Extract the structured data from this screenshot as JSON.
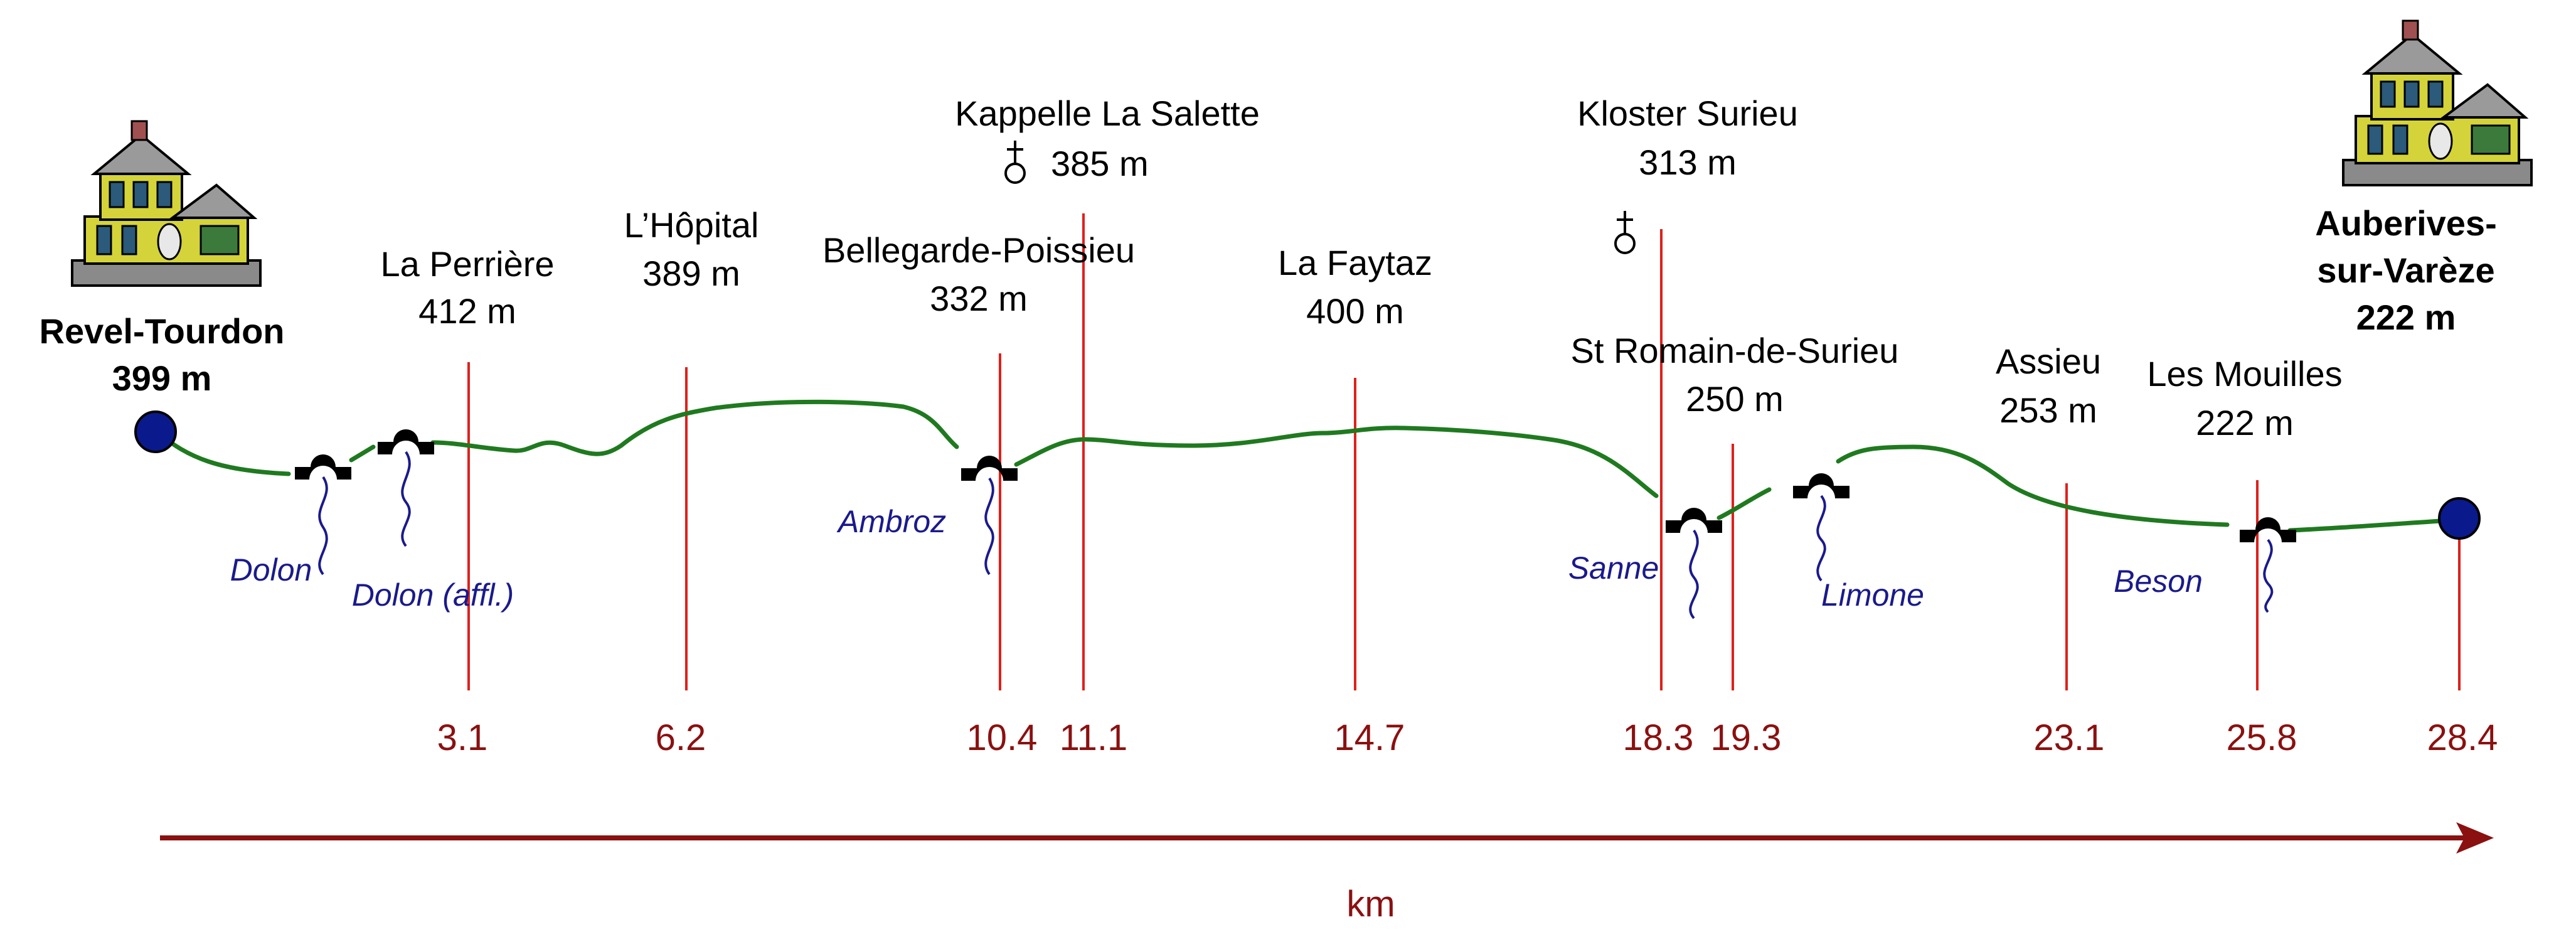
{
  "start": {
    "name": "Revel-Tourdon",
    "elevation": "399 m"
  },
  "end": {
    "name_line1": "Auberives-",
    "name_line2": "sur-Varèze",
    "elevation": "222 m"
  },
  "places": [
    {
      "name": "La Perrière",
      "elevation": "412 m"
    },
    {
      "name": "L’Hôpital",
      "elevation": "389 m"
    },
    {
      "name": "Bellegarde-Poissieu",
      "elevation": "332 m"
    },
    {
      "name": "Kappelle La Salette",
      "elevation": "385 m"
    },
    {
      "name": "La Faytaz",
      "elevation": "400 m"
    },
    {
      "name": "Kloster Surieu",
      "elevation": "313 m"
    },
    {
      "name": "St Romain-de-Surieu",
      "elevation": "250 m"
    },
    {
      "name": "Assieu",
      "elevation": "253 m"
    },
    {
      "name": "Les Mouilles",
      "elevation": "222 m"
    }
  ],
  "km_marks": [
    "3.1",
    "6.2",
    "10.4",
    "11.1",
    "14.7",
    "18.3",
    "19.3",
    "23.1",
    "25.8",
    "28.4"
  ],
  "rivers": [
    "Dolon",
    "Dolon (affl.)",
    "Ambroz",
    "Sanne",
    "Limone",
    "Beson"
  ],
  "axis": {
    "unit": "km"
  },
  "colors": {
    "route": "#1f7a1f",
    "marker_line": "#e0201a",
    "km_text": "#8b1010",
    "river": "#1a1a8c",
    "endpoint": "#0a1a8c",
    "axis_arrow": "#8b1010"
  },
  "icons": {
    "endpoints": "house-icon",
    "churches": "church-cross-icon",
    "crossings": "bridge-icon"
  }
}
